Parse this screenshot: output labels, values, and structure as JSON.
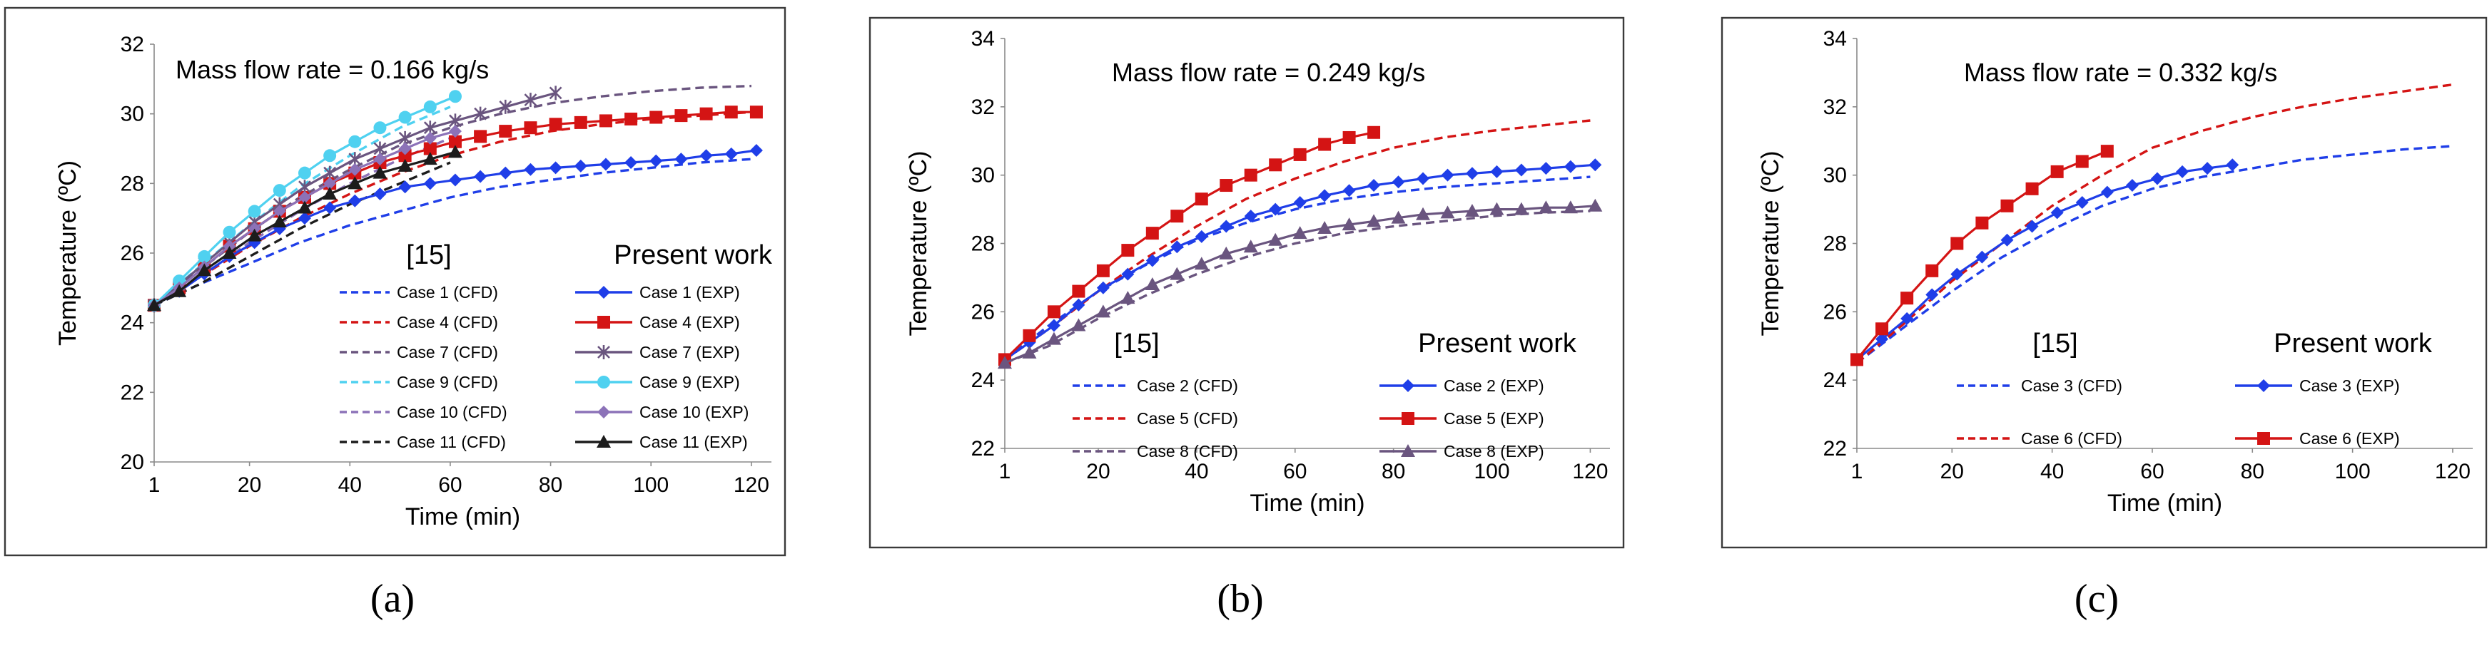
{
  "colors": {
    "case1": "#1f3ee8",
    "case2": "#1f3ee8",
    "case3": "#1f3ee8",
    "case4": "#d41414",
    "case5": "#d41414",
    "case6": "#d41414",
    "case7": "#6a557f",
    "case8": "#6a557f",
    "case9": "#4fd1f0",
    "case10": "#8c72b8",
    "case11": "#1c1c1c"
  },
  "captions": [
    "(a)",
    "(b)",
    "(c)"
  ],
  "chart_data": [
    {
      "type": "line",
      "title": "Mass flow  rate = 0.166 kg/s",
      "xlabel": "Time (min)",
      "ylabel": "Temperature (ºC)",
      "xticks": [
        1,
        20,
        40,
        60,
        80,
        100,
        120
      ],
      "yticks": [
        20,
        22,
        24,
        26,
        28,
        30,
        32
      ],
      "xlim": [
        1,
        124
      ],
      "ylim": [
        20,
        32
      ],
      "legend_placement": "bottom-right",
      "legend_left_header": "[15]",
      "legend_right_header": "Present work",
      "series": [
        {
          "name": "Case 1 (CFD)",
          "style": "dashed",
          "color_key": "case1",
          "x": [
            1,
            10,
            20,
            30,
            40,
            50,
            60,
            70,
            80,
            90,
            100,
            110,
            120
          ],
          "y": [
            24.5,
            25.1,
            25.7,
            26.3,
            26.8,
            27.2,
            27.6,
            27.9,
            28.1,
            28.3,
            28.45,
            28.6,
            28.7
          ]
        },
        {
          "name": "Case 4 (CFD)",
          "style": "dashed",
          "color_key": "case4",
          "x": [
            1,
            10,
            20,
            30,
            40,
            50,
            60,
            70,
            80,
            90,
            100,
            110,
            120
          ],
          "y": [
            24.5,
            25.3,
            26.2,
            27.0,
            27.7,
            28.3,
            28.8,
            29.2,
            29.5,
            29.7,
            29.85,
            29.95,
            30.05
          ]
        },
        {
          "name": "Case 7 (CFD)",
          "style": "dashed",
          "color_key": "case7",
          "x": [
            1,
            10,
            20,
            30,
            40,
            50,
            60,
            70,
            80,
            90,
            100,
            110,
            120
          ],
          "y": [
            24.5,
            25.5,
            26.6,
            27.6,
            28.4,
            29.1,
            29.6,
            30.0,
            30.3,
            30.5,
            30.65,
            30.75,
            30.8
          ]
        },
        {
          "name": "Case 9 (CFD)",
          "style": "dashed",
          "color_key": "case9",
          "x": [
            1,
            10,
            20,
            30,
            40,
            50,
            60
          ],
          "y": [
            24.5,
            25.6,
            26.8,
            27.9,
            28.8,
            29.6,
            30.2
          ]
        },
        {
          "name": "Case 10 (CFD)",
          "style": "dashed",
          "color_key": "case10",
          "x": [
            1,
            10,
            20,
            30,
            40,
            50,
            60
          ],
          "y": [
            24.5,
            25.3,
            26.3,
            27.2,
            28.0,
            28.7,
            29.3
          ]
        },
        {
          "name": "Case 11 (CFD)",
          "style": "dashed",
          "color_key": "case11",
          "x": [
            1,
            10,
            20,
            30,
            40,
            50,
            60
          ],
          "y": [
            24.5,
            25.1,
            25.9,
            26.7,
            27.4,
            28.0,
            28.6
          ]
        },
        {
          "name": "Case 1  (EXP)",
          "style": "solid",
          "marker": "diamond",
          "color_key": "case1",
          "x": [
            1,
            6,
            11,
            16,
            21,
            26,
            31,
            36,
            41,
            46,
            51,
            56,
            61,
            66,
            71,
            76,
            81,
            86,
            91,
            96,
            101,
            106,
            111,
            116,
            121
          ],
          "y": [
            24.5,
            24.9,
            25.4,
            25.9,
            26.3,
            26.7,
            27.0,
            27.3,
            27.5,
            27.7,
            27.9,
            28.0,
            28.1,
            28.2,
            28.3,
            28.4,
            28.45,
            28.5,
            28.55,
            28.6,
            28.65,
            28.7,
            28.8,
            28.85,
            28.95
          ]
        },
        {
          "name": "Case 4  (EXP)",
          "style": "solid",
          "marker": "square",
          "color_key": "case4",
          "x": [
            1,
            6,
            11,
            16,
            21,
            26,
            31,
            36,
            41,
            46,
            51,
            56,
            61,
            66,
            71,
            76,
            81,
            86,
            91,
            96,
            101,
            106,
            111,
            116,
            121
          ],
          "y": [
            24.5,
            25.0,
            25.6,
            26.2,
            26.7,
            27.2,
            27.6,
            28.0,
            28.3,
            28.6,
            28.8,
            29.0,
            29.2,
            29.35,
            29.5,
            29.6,
            29.7,
            29.75,
            29.8,
            29.85,
            29.9,
            29.95,
            30.0,
            30.05,
            30.05
          ]
        },
        {
          "name": "Case 7  (EXP)",
          "style": "solid",
          "marker": "star",
          "color_key": "case7",
          "x": [
            1,
            6,
            11,
            16,
            21,
            26,
            31,
            36,
            41,
            46,
            51,
            56,
            61,
            66,
            71,
            76,
            81
          ],
          "y": [
            24.5,
            25.1,
            25.7,
            26.3,
            26.9,
            27.4,
            27.9,
            28.3,
            28.7,
            29.0,
            29.3,
            29.6,
            29.8,
            30.0,
            30.2,
            30.4,
            30.6
          ]
        },
        {
          "name": "Case 9  (EXP)",
          "style": "solid",
          "marker": "circle",
          "color_key": "case9",
          "x": [
            1,
            6,
            11,
            16,
            21,
            26,
            31,
            36,
            41,
            46,
            51,
            56,
            61
          ],
          "y": [
            24.5,
            25.2,
            25.9,
            26.6,
            27.2,
            27.8,
            28.3,
            28.8,
            29.2,
            29.6,
            29.9,
            30.2,
            30.5
          ]
        },
        {
          "name": "Case 10  (EXP)",
          "style": "solid",
          "marker": "diamond",
          "color_key": "case10",
          "x": [
            1,
            6,
            11,
            16,
            21,
            26,
            31,
            36,
            41,
            46,
            51,
            56,
            61
          ],
          "y": [
            24.5,
            25.0,
            25.6,
            26.2,
            26.7,
            27.2,
            27.6,
            28.0,
            28.4,
            28.7,
            29.0,
            29.3,
            29.5
          ]
        },
        {
          "name": "Case 11  (EXP)",
          "style": "solid",
          "marker": "triangle",
          "color_key": "case11",
          "x": [
            1,
            6,
            11,
            16,
            21,
            26,
            31,
            36,
            41,
            46,
            51,
            56,
            61
          ],
          "y": [
            24.5,
            24.9,
            25.5,
            26.0,
            26.5,
            26.9,
            27.3,
            27.7,
            28.0,
            28.3,
            28.5,
            28.7,
            28.9
          ]
        }
      ]
    },
    {
      "type": "line",
      "title": "Mass flow  rate = 0.249 kg/s",
      "xlabel": "Time (min)",
      "ylabel": "Temperature (ºC)",
      "xticks": [
        1,
        20,
        40,
        60,
        80,
        100,
        120
      ],
      "yticks": [
        22,
        24,
        26,
        28,
        30,
        32,
        34
      ],
      "xlim": [
        1,
        124
      ],
      "ylim": [
        22,
        34
      ],
      "legend_placement": "bottom-right",
      "legend_left_header": "[15]",
      "legend_right_header": "Present work",
      "series": [
        {
          "name": "Case 2 (CFD)",
          "style": "dashed",
          "color_key": "case2",
          "x": [
            1,
            10,
            20,
            30,
            40,
            50,
            60,
            70,
            80,
            90,
            100,
            110,
            120
          ],
          "y": [
            24.6,
            25.6,
            26.6,
            27.4,
            28.1,
            28.6,
            29.0,
            29.3,
            29.5,
            29.65,
            29.75,
            29.85,
            29.95
          ]
        },
        {
          "name": "Case 5 (CFD)",
          "style": "dashed",
          "color_key": "case5",
          "x": [
            1,
            10,
            20,
            30,
            40,
            50,
            60,
            70,
            80,
            90,
            100,
            110,
            120
          ],
          "y": [
            24.6,
            25.5,
            26.6,
            27.6,
            28.5,
            29.3,
            29.9,
            30.4,
            30.8,
            31.1,
            31.3,
            31.45,
            31.6
          ]
        },
        {
          "name": "Case 8 (CFD)",
          "style": "dashed",
          "color_key": "case8",
          "x": [
            1,
            10,
            20,
            30,
            40,
            50,
            60,
            70,
            80,
            90,
            100,
            110,
            120
          ],
          "y": [
            24.5,
            25.0,
            25.8,
            26.5,
            27.1,
            27.6,
            28.0,
            28.3,
            28.5,
            28.65,
            28.8,
            28.9,
            28.95
          ]
        },
        {
          "name": "Case 2  (EXP)",
          "style": "solid",
          "marker": "diamond",
          "color_key": "case2",
          "x": [
            1,
            6,
            11,
            16,
            21,
            26,
            31,
            36,
            41,
            46,
            51,
            56,
            61,
            66,
            71,
            76,
            81,
            86,
            91,
            96,
            101,
            106,
            111,
            116,
            121
          ],
          "y": [
            24.6,
            25.1,
            25.6,
            26.2,
            26.7,
            27.1,
            27.5,
            27.9,
            28.2,
            28.5,
            28.8,
            29.0,
            29.2,
            29.4,
            29.55,
            29.7,
            29.8,
            29.9,
            30.0,
            30.05,
            30.1,
            30.15,
            30.2,
            30.25,
            30.3
          ]
        },
        {
          "name": "Case 5  (EXP)",
          "style": "solid",
          "marker": "square",
          "color_key": "case5",
          "x": [
            1,
            6,
            11,
            16,
            21,
            26,
            31,
            36,
            41,
            46,
            51,
            56,
            61,
            66,
            71,
            76
          ],
          "y": [
            24.6,
            25.3,
            26.0,
            26.6,
            27.2,
            27.8,
            28.3,
            28.8,
            29.3,
            29.7,
            30.0,
            30.3,
            30.6,
            30.9,
            31.1,
            31.25
          ]
        },
        {
          "name": "Case 8  (EXP)",
          "style": "solid",
          "marker": "triangle",
          "color_key": "case8",
          "x": [
            1,
            6,
            11,
            16,
            21,
            26,
            31,
            36,
            41,
            46,
            51,
            56,
            61,
            66,
            71,
            76,
            81,
            86,
            91,
            96,
            101,
            106,
            111,
            116,
            121
          ],
          "y": [
            24.5,
            24.8,
            25.2,
            25.6,
            26.0,
            26.4,
            26.8,
            27.1,
            27.4,
            27.7,
            27.9,
            28.1,
            28.3,
            28.45,
            28.55,
            28.65,
            28.75,
            28.85,
            28.9,
            28.95,
            29.0,
            29.0,
            29.05,
            29.05,
            29.1
          ]
        }
      ]
    },
    {
      "type": "line",
      "title": "Mass flow  rate = 0.332 kg/s",
      "xlabel": "Time (min)",
      "ylabel": "Temperature (ºC)",
      "xticks": [
        1,
        20,
        40,
        60,
        80,
        100,
        120
      ],
      "yticks": [
        22,
        24,
        26,
        28,
        30,
        32,
        34
      ],
      "xlim": [
        1,
        124
      ],
      "ylim": [
        22,
        34
      ],
      "legend_placement": "bottom-right",
      "legend_left_header": "[15]",
      "legend_right_header": "Present work",
      "series": [
        {
          "name": "Case 3 (CFD)",
          "style": "dashed",
          "color_key": "case3",
          "x": [
            1,
            10,
            20,
            30,
            40,
            50,
            60,
            70,
            80,
            90,
            100,
            110,
            120
          ],
          "y": [
            24.5,
            25.5,
            26.6,
            27.6,
            28.4,
            29.1,
            29.6,
            29.95,
            30.2,
            30.45,
            30.6,
            30.75,
            30.85
          ]
        },
        {
          "name": "Case 6 (CFD)",
          "style": "dashed",
          "color_key": "case6",
          "x": [
            1,
            10,
            20,
            30,
            40,
            50,
            60,
            70,
            80,
            90,
            100,
            110,
            120
          ],
          "y": [
            24.5,
            25.6,
            26.9,
            28.0,
            29.1,
            30.0,
            30.8,
            31.3,
            31.7,
            32.0,
            32.25,
            32.45,
            32.65
          ]
        },
        {
          "name": "Case 3  (EXP)",
          "style": "solid",
          "marker": "diamond",
          "color_key": "case3",
          "x": [
            1,
            6,
            11,
            16,
            21,
            26,
            31,
            36,
            41,
            46,
            51,
            56,
            61,
            66,
            71,
            76
          ],
          "y": [
            24.6,
            25.2,
            25.8,
            26.5,
            27.1,
            27.6,
            28.1,
            28.5,
            28.9,
            29.2,
            29.5,
            29.7,
            29.9,
            30.1,
            30.2,
            30.3
          ]
        },
        {
          "name": "Case 6  (EXP)",
          "style": "solid",
          "marker": "square",
          "color_key": "case6",
          "x": [
            1,
            6,
            11,
            16,
            21,
            26,
            31,
            36,
            41,
            46,
            51
          ],
          "y": [
            24.6,
            25.5,
            26.4,
            27.2,
            28.0,
            28.6,
            29.1,
            29.6,
            30.1,
            30.4,
            30.7
          ]
        }
      ]
    }
  ]
}
